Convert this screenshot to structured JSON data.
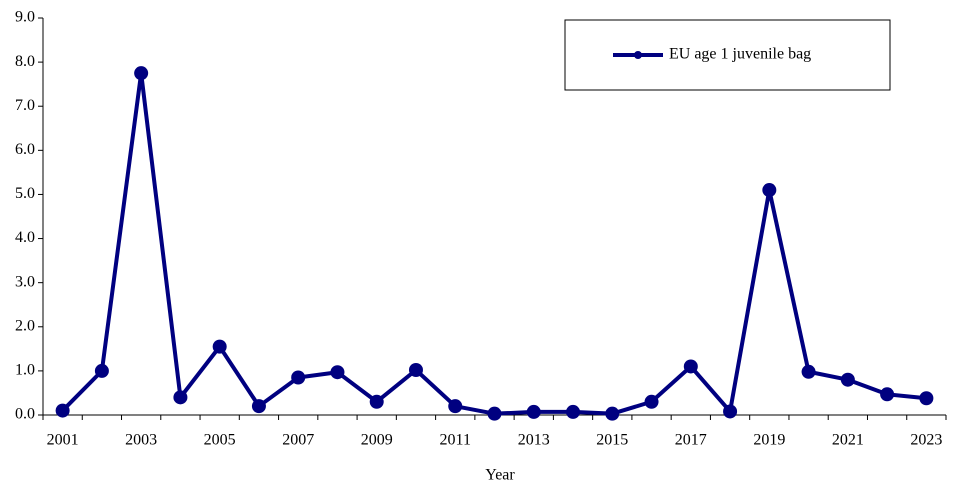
{
  "chart_data": {
    "type": "line",
    "x_label": "Year",
    "categories": [
      "2001",
      null,
      "2003",
      null,
      "2005",
      null,
      "2007",
      null,
      "2009",
      null,
      "2011",
      null,
      "2013",
      null,
      "2015",
      null,
      "2017",
      null,
      "2019",
      null,
      "2021",
      null,
      "2023"
    ],
    "series": [
      {
        "name": "EU age 1 juvenile bag",
        "color": "#000080",
        "values": [
          0.1,
          1.0,
          7.75,
          0.4,
          1.55,
          0.2,
          0.85,
          0.97,
          0.3,
          1.02,
          0.2,
          0.03,
          0.07,
          0.07,
          0.03,
          0.3,
          1.1,
          0.08,
          5.1,
          0.98,
          0.8,
          0.47,
          0.38
        ]
      }
    ],
    "ylim": [
      0,
      9
    ],
    "yticks": [
      {
        "value": 0,
        "label": "0.0"
      },
      {
        "value": 1,
        "label": "1.0"
      },
      {
        "value": 2,
        "label": "2.0"
      },
      {
        "value": 3,
        "label": "3.0"
      },
      {
        "value": 4,
        "label": "4.0"
      },
      {
        "value": 5,
        "label": "5.0"
      },
      {
        "value": 6,
        "label": "6.0"
      },
      {
        "value": 7,
        "label": "7.0"
      },
      {
        "value": 8,
        "label": "8.0"
      },
      {
        "value": 9,
        "label": "9.0"
      }
    ],
    "legend": "top-right"
  }
}
